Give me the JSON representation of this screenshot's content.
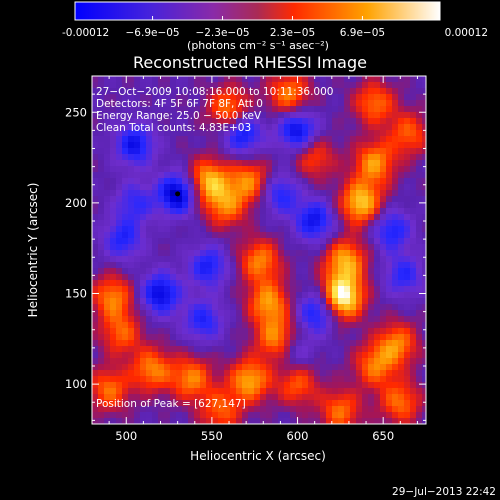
{
  "chart_data": {
    "type": "heatmap",
    "title": "Reconstructed RHESSI Image",
    "xlabel": "Heliocentric X (arcsec)",
    "ylabel": "Heliocentric Y (arcsec)",
    "xlim": [
      480,
      675
    ],
    "ylim": [
      78,
      270
    ],
    "x_ticks": [
      500,
      550,
      600,
      650
    ],
    "y_ticks": [
      100,
      150,
      200,
      250
    ],
    "grid": false,
    "colorbar": {
      "location": "top",
      "range": [
        -0.00012,
        0.00012
      ],
      "tick_values": [
        -0.00012,
        -6.9e-05,
        -2.3e-05,
        2.3e-05,
        6.9e-05,
        0.00012
      ],
      "tick_labels": [
        "-0.00012",
        "−6.9e−05",
        "−2.3e−05",
        "2.3e−05",
        "6.9e−05",
        "0.00012"
      ],
      "label": "(photons cm⁻² s⁻¹ asec⁻²)",
      "colors": [
        "#0000ff",
        "#6b2ec9",
        "#aa2a55",
        "#ff2a00",
        "#ffa200",
        "#ffffff"
      ]
    },
    "annotations": [
      "27−Oct−2009 10:08:16.000 to 10:11:36.000",
      "Detectors: 4F 5F 6F 7F 8F, Att 0",
      "Energy Range: 25.0 − 50.0 keV",
      "Clean     Total counts: 4.83E+03"
    ],
    "peak": {
      "x": 627,
      "y": 147,
      "label": "Position of Peak = [627,147]"
    },
    "hot_spots": [
      {
        "x": 626,
        "y": 148,
        "amp": 1.0
      },
      {
        "x": 637,
        "y": 200,
        "amp": 0.75
      },
      {
        "x": 645,
        "y": 222,
        "amp": 0.6
      },
      {
        "x": 628,
        "y": 168,
        "amp": 0.65
      },
      {
        "x": 560,
        "y": 252,
        "amp": 0.55
      },
      {
        "x": 595,
        "y": 260,
        "amp": 0.55
      },
      {
        "x": 645,
        "y": 255,
        "amp": 0.5
      },
      {
        "x": 665,
        "y": 238,
        "amp": 0.45
      },
      {
        "x": 548,
        "y": 212,
        "amp": 0.7
      },
      {
        "x": 572,
        "y": 212,
        "amp": 0.55
      },
      {
        "x": 558,
        "y": 198,
        "amp": 0.5
      },
      {
        "x": 578,
        "y": 168,
        "amp": 0.55
      },
      {
        "x": 583,
        "y": 145,
        "amp": 0.6
      },
      {
        "x": 588,
        "y": 125,
        "amp": 0.6
      },
      {
        "x": 572,
        "y": 102,
        "amp": 0.65
      },
      {
        "x": 538,
        "y": 103,
        "amp": 0.55
      },
      {
        "x": 515,
        "y": 108,
        "amp": 0.55
      },
      {
        "x": 490,
        "y": 97,
        "amp": 0.5
      },
      {
        "x": 497,
        "y": 128,
        "amp": 0.45
      },
      {
        "x": 492,
        "y": 148,
        "amp": 0.55
      },
      {
        "x": 555,
        "y": 85,
        "amp": 0.45
      },
      {
        "x": 625,
        "y": 85,
        "amp": 0.5
      },
      {
        "x": 660,
        "y": 90,
        "amp": 0.5
      },
      {
        "x": 658,
        "y": 122,
        "amp": 0.55
      },
      {
        "x": 645,
        "y": 110,
        "amp": 0.5
      },
      {
        "x": 600,
        "y": 100,
        "amp": 0.45
      },
      {
        "x": 610,
        "y": 225,
        "amp": 0.4
      }
    ],
    "cold_spots": [
      {
        "x": 530,
        "y": 205,
        "amp": 1.0
      },
      {
        "x": 520,
        "y": 150,
        "amp": 0.85
      },
      {
        "x": 505,
        "y": 232,
        "amp": 0.75
      },
      {
        "x": 600,
        "y": 240,
        "amp": 0.85
      },
      {
        "x": 568,
        "y": 238,
        "amp": 0.75
      },
      {
        "x": 610,
        "y": 190,
        "amp": 0.75
      },
      {
        "x": 590,
        "y": 205,
        "amp": 0.6
      },
      {
        "x": 548,
        "y": 165,
        "amp": 0.65
      },
      {
        "x": 545,
        "y": 135,
        "amp": 0.6
      },
      {
        "x": 612,
        "y": 140,
        "amp": 0.75
      },
      {
        "x": 655,
        "y": 185,
        "amp": 0.65
      },
      {
        "x": 662,
        "y": 160,
        "amp": 0.55
      },
      {
        "x": 498,
        "y": 180,
        "amp": 0.6
      },
      {
        "x": 505,
        "y": 200,
        "amp": 0.5
      },
      {
        "x": 598,
        "y": 118,
        "amp": 0.4
      }
    ]
  },
  "footer": {
    "timestamp": "29−Jul−2013 22:42"
  }
}
